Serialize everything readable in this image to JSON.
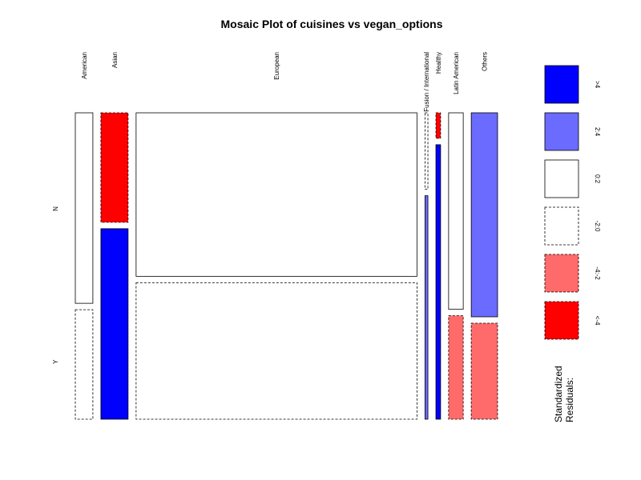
{
  "chart_data": {
    "type": "mosaic",
    "title": "Mosaic Plot of cuisines vs vegan_options",
    "x_variable": "cuisines",
    "y_variable": "vegan_options",
    "categories": [
      "American",
      "Asian",
      "European",
      "Fusion / International",
      "Healthy",
      "Latin American",
      "Others"
    ],
    "row_levels": [
      "N",
      "Y"
    ],
    "column_shares": [
      0.06,
      0.093,
      0.96,
      0.01,
      0.016,
      0.05,
      0.09
    ],
    "cells": [
      {
        "category": "American",
        "N_share": 0.635,
        "N_fill": "white",
        "N_border": "solid",
        "Y_fill": "white",
        "Y_border": "dashed"
      },
      {
        "category": "Asian",
        "N_share": 0.365,
        "N_fill": "#ff0000",
        "N_border": "dashed",
        "Y_fill": "#0000ff",
        "Y_border": "solid"
      },
      {
        "category": "European",
        "N_share": 0.545,
        "N_fill": "white",
        "N_border": "solid",
        "Y_fill": "white",
        "Y_border": "dashed"
      },
      {
        "category": "Fusion / International",
        "N_share": 0.255,
        "N_fill": "white",
        "N_border": "dashed",
        "Y_fill": "#6b6bff",
        "Y_border": "solid"
      },
      {
        "category": "Healthy",
        "N_share": 0.085,
        "N_fill": "#ff0000",
        "N_border": "dashed",
        "Y_fill": "#0000ff",
        "Y_border": "solid"
      },
      {
        "category": "Latin American",
        "N_share": 0.655,
        "N_fill": "white",
        "N_border": "solid",
        "Y_fill": "#ff6b6b",
        "Y_border": "dashed"
      },
      {
        "category": "Others",
        "N_share": 0.68,
        "N_fill": "#6b6bff",
        "N_border": "solid",
        "Y_fill": "#ff6b6b",
        "Y_border": "dashed"
      }
    ],
    "legend": {
      "title_line1": "Standardized",
      "title_line2": "Residuals:",
      "items": [
        {
          "label": ">4",
          "color": "#0000ff",
          "border": "solid"
        },
        {
          "label": "2:4",
          "color": "#6b6bff",
          "border": "solid"
        },
        {
          "label": "0:2",
          "color": "#ffffff",
          "border": "solid"
        },
        {
          "label": "-2:0",
          "color": "#ffffff",
          "border": "dashed"
        },
        {
          "label": "-4:-2",
          "color": "#ff6b6b",
          "border": "dashed"
        },
        {
          "label": "<-4",
          "color": "#ff0000",
          "border": "dashed"
        }
      ]
    }
  }
}
